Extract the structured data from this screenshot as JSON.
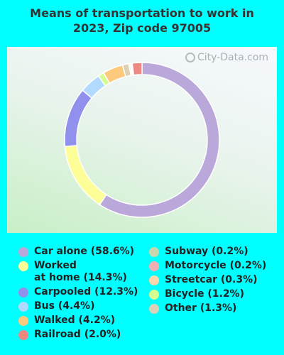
{
  "chart_data": {
    "type": "pie",
    "donut": true,
    "title": "Means of transportation to work in\n2023, Zip code 97005",
    "watermark": "City-Data.com",
    "slices": [
      {
        "label": "Car alone (58.6%)",
        "value": 58.6,
        "color": "#bba8da"
      },
      {
        "label": "Worked\nat home (14.3%)",
        "value": 14.3,
        "color": "#fefe98"
      },
      {
        "label": "Carpooled (12.3%)",
        "value": 12.3,
        "color": "#9191ed"
      },
      {
        "label": "Bus (4.4%)",
        "value": 4.4,
        "color": "#b2d9fe"
      },
      {
        "label": "Bicycle (1.2%)",
        "value": 1.2,
        "color": "#d5fd90"
      },
      {
        "label": "Walked (4.2%)",
        "value": 4.2,
        "color": "#fdca7d"
      },
      {
        "label": "Other (1.3%)",
        "value": 1.3,
        "color": "#ddd1b7"
      },
      {
        "label": "Streetcar (0.3%)",
        "value": 0.3,
        "color": "#fcd7ac"
      },
      {
        "label": "Subway (0.2%)",
        "value": 0.2,
        "color": "#c8d8ae"
      },
      {
        "label": "Motorcycle (0.2%)",
        "value": 0.2,
        "color": "#f2b0b2"
      },
      {
        "label": "Railroad (2.0%)",
        "value": 2.0,
        "color": "#ee8882"
      }
    ],
    "legend_columns": [
      [
        "Car alone (58.6%)",
        "Worked\nat home (14.3%)",
        "Carpooled (12.3%)",
        "Bus (4.4%)",
        "Walked (4.2%)",
        "Railroad (2.0%)"
      ],
      [
        "Subway (0.2%)",
        "Motorcycle (0.2%)",
        "Streetcar (0.3%)",
        "Bicycle (1.2%)",
        "Other (1.3%)"
      ]
    ],
    "legend_colors": [
      [
        "#bba8da",
        "#fefe98",
        "#9191ed",
        "#b2d9fe",
        "#fdca7d",
        "#ee8882"
      ],
      [
        "#c8d8ae",
        "#f2b0b2",
        "#fcd7ac",
        "#d5fd90",
        "#ddd1b7"
      ]
    ],
    "legend_placement": "bottom"
  }
}
